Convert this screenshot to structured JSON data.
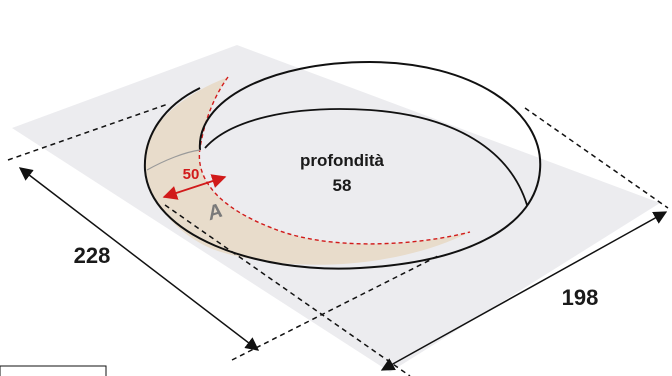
{
  "diagram": {
    "depth_label": "profondità",
    "depth_value": "58",
    "width_dimension": "228",
    "length_dimension": "198",
    "offset_dimension": "50",
    "area_label": "A"
  },
  "colors": {
    "plate": "#ececef",
    "band": "#e8dccb",
    "outline": "#111111",
    "dashed": "#111111",
    "accent_red": "#d11a1a",
    "area_label_color": "#7a7a7a"
  }
}
